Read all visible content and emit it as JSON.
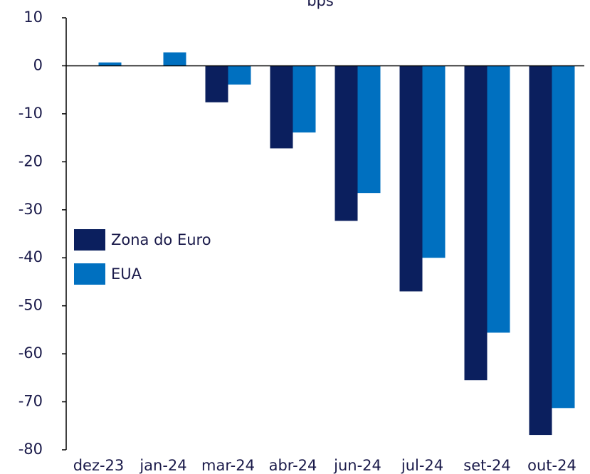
{
  "chart_data": {
    "type": "bar",
    "title": "bps",
    "categories": [
      "dez-23",
      "jan-24",
      "mar-24",
      "abr-24",
      "jun-24",
      "jul-24",
      "set-24",
      "out-24"
    ],
    "series": [
      {
        "name": "Zona do Euro",
        "color": "#0b1f5e",
        "values": [
          0,
          0,
          -7.6,
          -17.2,
          -32.3,
          -47,
          -65.5,
          -76.9
        ]
      },
      {
        "name": "EUA",
        "color": "#0070c0",
        "values": [
          0.7,
          2.8,
          -3.9,
          -13.9,
          -26.5,
          -40,
          -55.6,
          -71.3
        ]
      }
    ],
    "ylim": [
      -80,
      10
    ],
    "yticks": [
      -80,
      -70,
      -60,
      -50,
      -40,
      -30,
      -20,
      -10,
      0,
      10
    ],
    "legend": "left"
  }
}
